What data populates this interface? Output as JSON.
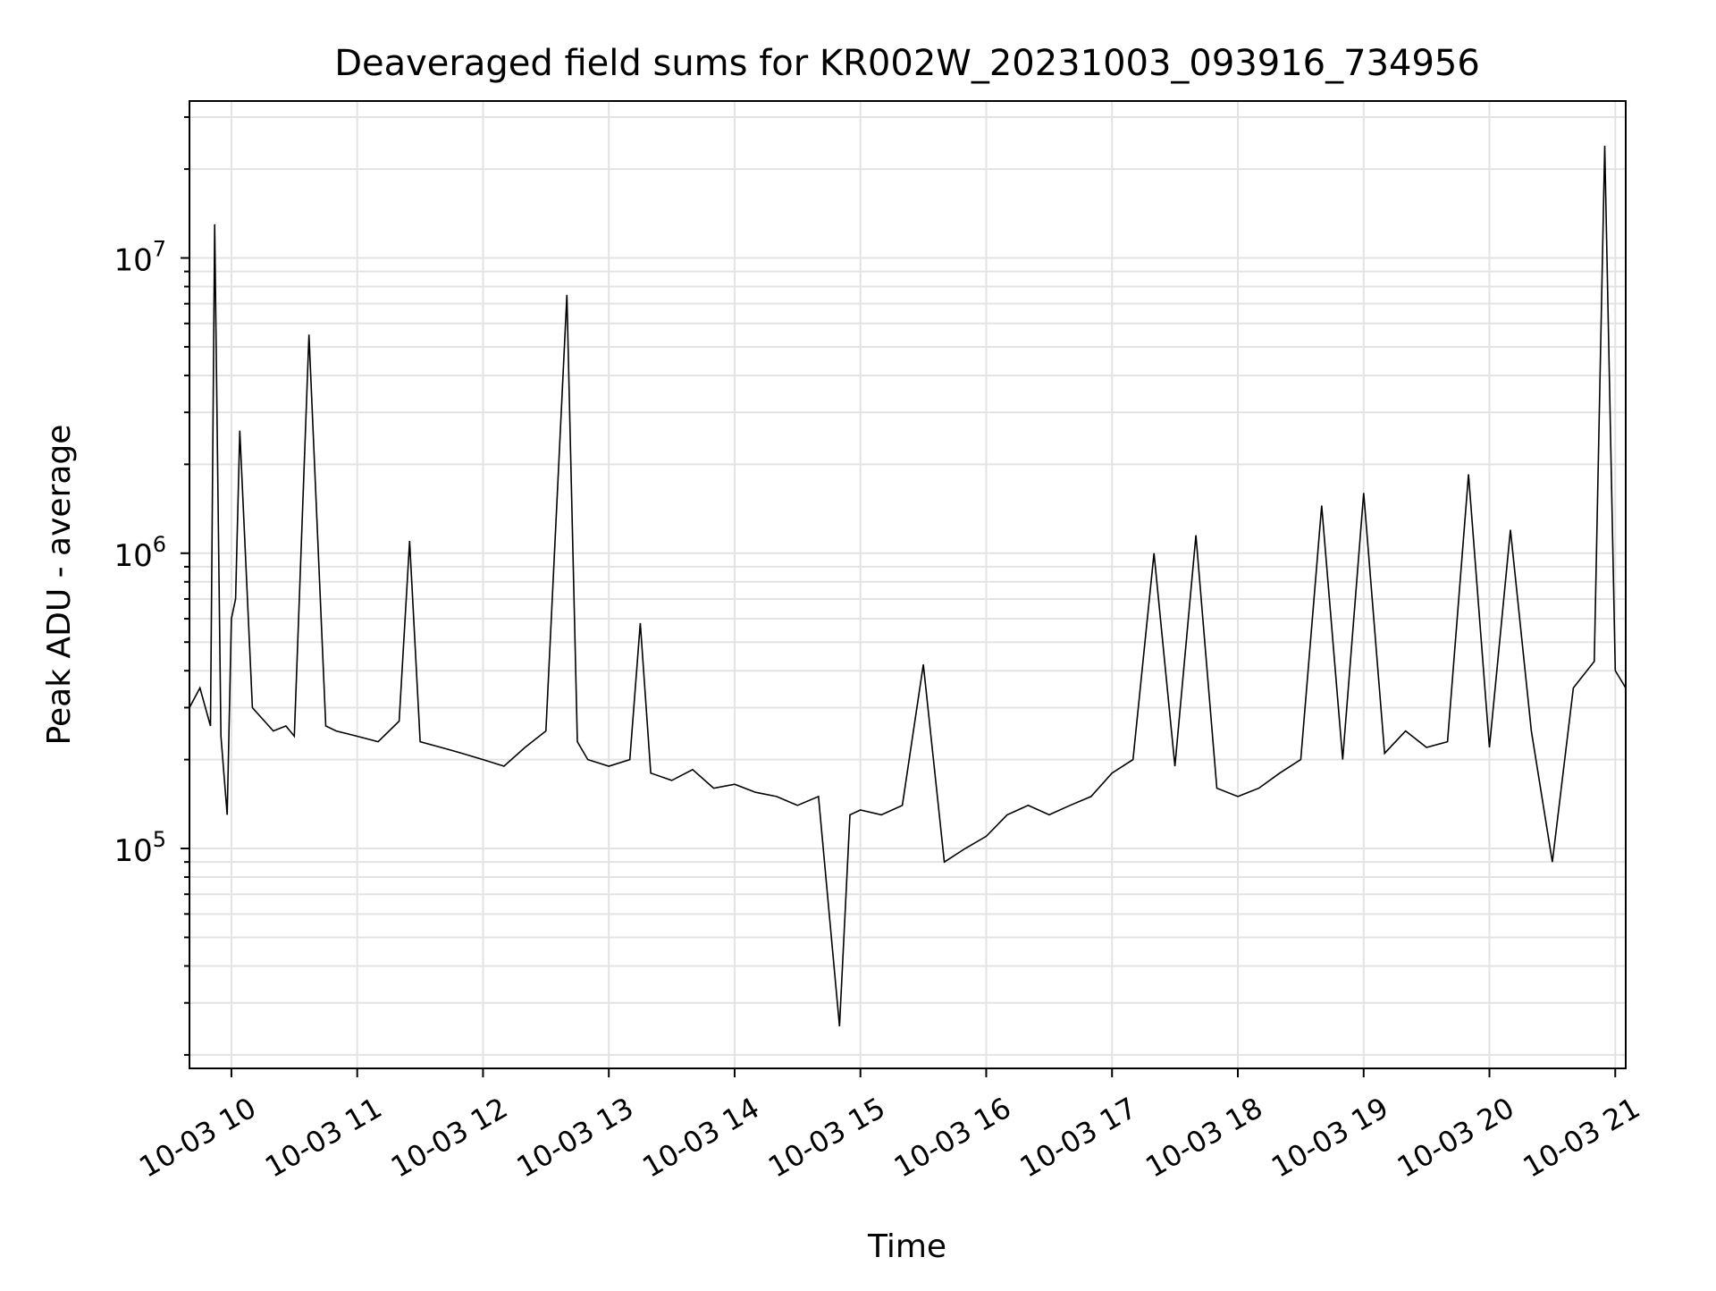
{
  "chart_data": {
    "type": "line",
    "title": "Deaveraged field sums for KR002W_20231003_093916_734956",
    "xlabel": "Time",
    "ylabel": "Peak ADU - average",
    "yscale": "log",
    "grid": true,
    "xlim": [
      "2023-10-03 09:40",
      "2023-10-03 21:05"
    ],
    "ylim": [
      18000,
      34000000
    ],
    "x_ticks": [
      {
        "value": "2023-10-03 10:00",
        "label": "10-03 10"
      },
      {
        "value": "2023-10-03 11:00",
        "label": "10-03 11"
      },
      {
        "value": "2023-10-03 12:00",
        "label": "10-03 12"
      },
      {
        "value": "2023-10-03 13:00",
        "label": "10-03 13"
      },
      {
        "value": "2023-10-03 14:00",
        "label": "10-03 14"
      },
      {
        "value": "2023-10-03 15:00",
        "label": "10-03 15"
      },
      {
        "value": "2023-10-03 16:00",
        "label": "10-03 16"
      },
      {
        "value": "2023-10-03 17:00",
        "label": "10-03 17"
      },
      {
        "value": "2023-10-03 18:00",
        "label": "10-03 18"
      },
      {
        "value": "2023-10-03 19:00",
        "label": "10-03 19"
      },
      {
        "value": "2023-10-03 20:00",
        "label": "10-03 20"
      },
      {
        "value": "2023-10-03 21:00",
        "label": "10-03 21"
      }
    ],
    "y_ticks": [
      {
        "value": 100000,
        "base": "10",
        "exp": "5"
      },
      {
        "value": 1000000,
        "base": "10",
        "exp": "6"
      },
      {
        "value": 10000000,
        "base": "10",
        "exp": "7"
      }
    ],
    "series": [
      {
        "color": "#000000",
        "x": [
          "2023-10-03 09:40",
          "2023-10-03 09:45",
          "2023-10-03 09:50",
          "2023-10-03 09:52",
          "2023-10-03 09:55",
          "2023-10-03 09:58",
          "2023-10-03 10:00",
          "2023-10-03 10:02",
          "2023-10-03 10:04",
          "2023-10-03 10:10",
          "2023-10-03 10:20",
          "2023-10-03 10:26",
          "2023-10-03 10:30",
          "2023-10-03 10:37",
          "2023-10-03 10:45",
          "2023-10-03 10:50",
          "2023-10-03 11:00",
          "2023-10-03 11:10",
          "2023-10-03 11:20",
          "2023-10-03 11:25",
          "2023-10-03 11:30",
          "2023-10-03 11:40",
          "2023-10-03 11:50",
          "2023-10-03 12:00",
          "2023-10-03 12:10",
          "2023-10-03 12:20",
          "2023-10-03 12:30",
          "2023-10-03 12:40",
          "2023-10-03 12:45",
          "2023-10-03 12:50",
          "2023-10-03 13:00",
          "2023-10-03 13:10",
          "2023-10-03 13:15",
          "2023-10-03 13:20",
          "2023-10-03 13:30",
          "2023-10-03 13:40",
          "2023-10-03 13:50",
          "2023-10-03 14:00",
          "2023-10-03 14:10",
          "2023-10-03 14:20",
          "2023-10-03 14:30",
          "2023-10-03 14:40",
          "2023-10-03 14:50",
          "2023-10-03 14:55",
          "2023-10-03 15:00",
          "2023-10-03 15:10",
          "2023-10-03 15:20",
          "2023-10-03 15:30",
          "2023-10-03 15:40",
          "2023-10-03 15:50",
          "2023-10-03 16:00",
          "2023-10-03 16:10",
          "2023-10-03 16:20",
          "2023-10-03 16:30",
          "2023-10-03 16:40",
          "2023-10-03 16:50",
          "2023-10-03 17:00",
          "2023-10-03 17:10",
          "2023-10-03 17:20",
          "2023-10-03 17:30",
          "2023-10-03 17:40",
          "2023-10-03 17:50",
          "2023-10-03 18:00",
          "2023-10-03 18:10",
          "2023-10-03 18:20",
          "2023-10-03 18:30",
          "2023-10-03 18:40",
          "2023-10-03 18:50",
          "2023-10-03 19:00",
          "2023-10-03 19:10",
          "2023-10-03 19:20",
          "2023-10-03 19:30",
          "2023-10-03 19:40",
          "2023-10-03 19:50",
          "2023-10-03 20:00",
          "2023-10-03 20:10",
          "2023-10-03 20:20",
          "2023-10-03 20:30",
          "2023-10-03 20:40",
          "2023-10-03 20:50",
          "2023-10-03 20:55",
          "2023-10-03 21:00",
          "2023-10-03 21:05"
        ],
        "y": [
          300000,
          350000,
          260000,
          13000000,
          240000,
          130000,
          600000,
          700000,
          2600000,
          300000,
          250000,
          260000,
          240000,
          5500000,
          260000,
          250000,
          240000,
          230000,
          270000,
          1100000,
          230000,
          220000,
          210000,
          200000,
          190000,
          220000,
          250000,
          7500000,
          230000,
          200000,
          190000,
          200000,
          580000,
          180000,
          170000,
          185000,
          160000,
          165000,
          155000,
          150000,
          140000,
          150000,
          25000,
          130000,
          135000,
          130000,
          140000,
          420000,
          90000,
          100000,
          110000,
          130000,
          140000,
          130000,
          140000,
          150000,
          180000,
          200000,
          1000000,
          190000,
          1150000,
          160000,
          150000,
          160000,
          180000,
          200000,
          1450000,
          200000,
          1600000,
          210000,
          250000,
          220000,
          230000,
          1850000,
          220000,
          1200000,
          250000,
          90000,
          350000,
          430000,
          24000000,
          400000,
          350000
        ]
      }
    ]
  }
}
